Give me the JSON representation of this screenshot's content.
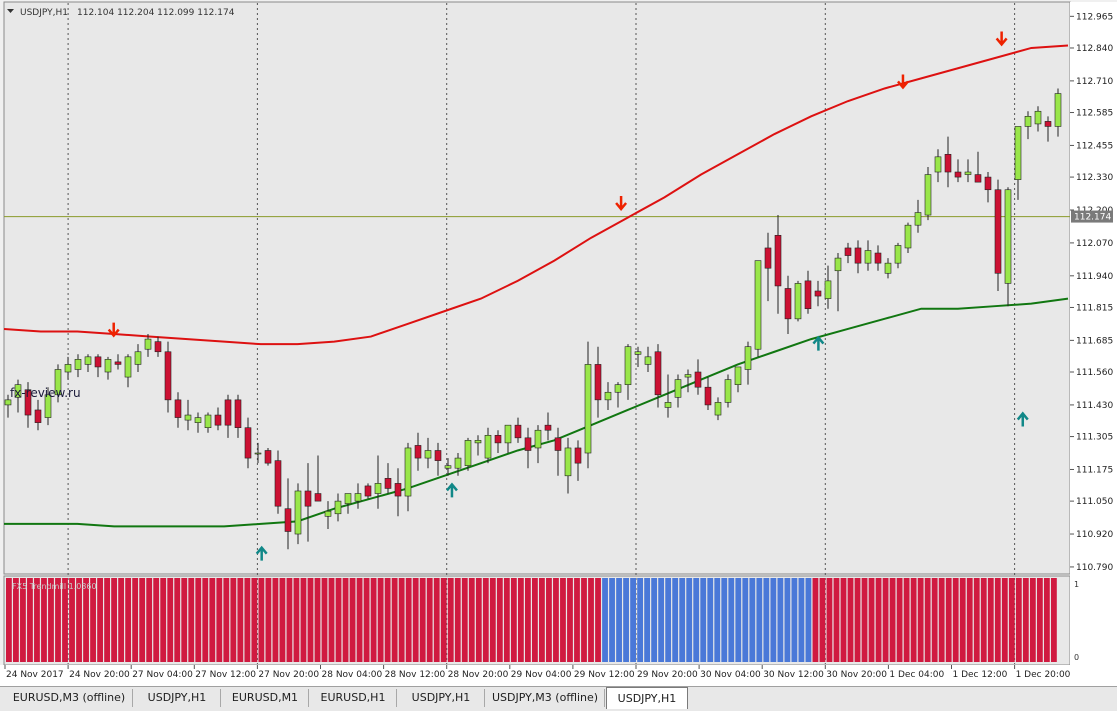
{
  "chart_header": {
    "symbol": "USDJPY,H1",
    "ohlc": "112.104 112.204 112.099 112.174"
  },
  "watermark": "fx-review.ru",
  "indicator_label": "FX5 Trendmill 1.0360",
  "current_price_label": "112.174",
  "colors": {
    "background": "#e8e8e8",
    "bull_candle": "#99e64a",
    "bear_candle": "#cc1133",
    "upper_band": "#dd1111",
    "lower_band": "#117711",
    "current_price_line": "#8a9a2a",
    "down_arrow": "#ee2200",
    "up_arrow": "#118888",
    "histogram_red": "#d01a40",
    "histogram_blue": "#4a78d8"
  },
  "chart_data": [
    {
      "type": "candlestick",
      "symbol": "USDJPY",
      "timeframe": "H1",
      "y_axis_ticks": [
        "112.965",
        "112.840",
        "112.710",
        "112.585",
        "112.455",
        "112.330",
        "112.200",
        "112.070",
        "111.940",
        "111.815",
        "111.685",
        "111.560",
        "111.430",
        "111.305",
        "111.175",
        "111.050",
        "110.920",
        "110.790"
      ],
      "ylim": [
        110.77,
        112.99
      ],
      "x_axis_ticks": [
        "24 Nov 2017",
        "24 Nov 20:00",
        "27 Nov 04:00",
        "27 Nov 12:00",
        "27 Nov 20:00",
        "28 Nov 04:00",
        "28 Nov 12:00",
        "28 Nov 20:00",
        "29 Nov 04:00",
        "29 Nov 12:00",
        "29 Nov 20:00",
        "30 Nov 04:00",
        "30 Nov 12:00",
        "30 Nov 20:00",
        "1 Dec 04:00",
        "1 Dec 12:00",
        "1 Dec 20:00"
      ],
      "current_price": 112.174,
      "candle_count": 106,
      "candles": [
        [
          111.43,
          111.47,
          111.38,
          111.45
        ],
        [
          111.46,
          111.53,
          111.4,
          111.51
        ],
        [
          111.49,
          111.52,
          111.34,
          111.39
        ],
        [
          111.41,
          111.45,
          111.33,
          111.36
        ],
        [
          111.38,
          111.5,
          111.35,
          111.47
        ],
        [
          111.47,
          111.59,
          111.44,
          111.57
        ],
        [
          111.56,
          111.62,
          111.53,
          111.59
        ],
        [
          111.57,
          111.63,
          111.54,
          111.61
        ],
        [
          111.59,
          111.63,
          111.56,
          111.62
        ],
        [
          111.62,
          111.63,
          111.54,
          111.58
        ],
        [
          111.56,
          111.62,
          111.53,
          111.61
        ],
        [
          111.6,
          111.63,
          111.57,
          111.59
        ],
        [
          111.54,
          111.63,
          111.5,
          111.62
        ],
        [
          111.59,
          111.67,
          111.56,
          111.64
        ],
        [
          111.65,
          111.71,
          111.62,
          111.69
        ],
        [
          111.68,
          111.7,
          111.62,
          111.64
        ],
        [
          111.64,
          111.68,
          111.4,
          111.45
        ],
        [
          111.45,
          111.48,
          111.34,
          111.38
        ],
        [
          111.37,
          111.45,
          111.33,
          111.39
        ],
        [
          111.36,
          111.4,
          111.32,
          111.38
        ],
        [
          111.34,
          111.4,
          111.32,
          111.39
        ],
        [
          111.39,
          111.42,
          111.33,
          111.35
        ],
        [
          111.45,
          111.47,
          111.3,
          111.35
        ],
        [
          111.45,
          111.47,
          111.3,
          111.34
        ],
        [
          111.34,
          111.38,
          111.18,
          111.22
        ],
        [
          111.24,
          111.28,
          111.2,
          111.24
        ],
        [
          111.25,
          111.26,
          111.19,
          111.2
        ],
        [
          111.21,
          111.25,
          111.0,
          111.03
        ],
        [
          111.02,
          111.14,
          110.86,
          110.93
        ],
        [
          110.92,
          111.12,
          110.88,
          111.09
        ],
        [
          111.09,
          111.2,
          110.89,
          111.03
        ],
        [
          111.08,
          111.23,
          111.05,
          111.05
        ],
        [
          110.99,
          111.05,
          110.94,
          111.01
        ],
        [
          111.0,
          111.08,
          110.97,
          111.05
        ],
        [
          111.04,
          111.08,
          111.0,
          111.08
        ],
        [
          111.05,
          111.12,
          111.02,
          111.08
        ],
        [
          111.11,
          111.12,
          111.06,
          111.07
        ],
        [
          111.08,
          111.23,
          111.02,
          111.12
        ],
        [
          111.14,
          111.2,
          111.08,
          111.1
        ],
        [
          111.12,
          111.18,
          110.99,
          111.07
        ],
        [
          111.07,
          111.28,
          111.01,
          111.26
        ],
        [
          111.27,
          111.32,
          111.17,
          111.22
        ],
        [
          111.22,
          111.3,
          111.18,
          111.25
        ],
        [
          111.25,
          111.28,
          111.15,
          111.21
        ],
        [
          111.18,
          111.22,
          111.15,
          111.19
        ],
        [
          111.18,
          111.24,
          111.15,
          111.22
        ],
        [
          111.19,
          111.3,
          111.17,
          111.29
        ],
        [
          111.28,
          111.31,
          111.23,
          111.29
        ],
        [
          111.22,
          111.34,
          111.2,
          111.31
        ],
        [
          111.31,
          111.33,
          111.24,
          111.28
        ],
        [
          111.28,
          111.35,
          111.24,
          111.35
        ],
        [
          111.35,
          111.38,
          111.28,
          111.3
        ],
        [
          111.3,
          111.34,
          111.18,
          111.25
        ],
        [
          111.26,
          111.35,
          111.2,
          111.33
        ],
        [
          111.35,
          111.4,
          111.29,
          111.33
        ],
        [
          111.3,
          111.34,
          111.15,
          111.25
        ],
        [
          111.15,
          111.3,
          111.08,
          111.26
        ],
        [
          111.26,
          111.29,
          111.13,
          111.2
        ],
        [
          111.24,
          111.68,
          111.18,
          111.59
        ],
        [
          111.59,
          111.66,
          111.38,
          111.45
        ],
        [
          111.45,
          111.52,
          111.41,
          111.48
        ],
        [
          111.48,
          111.52,
          111.42,
          111.51
        ],
        [
          111.51,
          111.67,
          111.45,
          111.66
        ],
        [
          111.63,
          111.66,
          111.58,
          111.64
        ],
        [
          111.59,
          111.66,
          111.56,
          111.62
        ],
        [
          111.64,
          111.67,
          111.42,
          111.47
        ],
        [
          111.42,
          111.55,
          111.38,
          111.44
        ],
        [
          111.46,
          111.55,
          111.42,
          111.53
        ],
        [
          111.54,
          111.57,
          111.48,
          111.55
        ],
        [
          111.56,
          111.61,
          111.47,
          111.5
        ],
        [
          111.5,
          111.54,
          111.41,
          111.43
        ],
        [
          111.39,
          111.46,
          111.37,
          111.44
        ],
        [
          111.44,
          111.55,
          111.42,
          111.53
        ],
        [
          111.51,
          111.58,
          111.48,
          111.58
        ],
        [
          111.57,
          111.68,
          111.51,
          111.66
        ],
        [
          111.65,
          112.0,
          111.62,
          112.0
        ],
        [
          112.05,
          112.11,
          111.84,
          111.97
        ],
        [
          112.1,
          112.18,
          111.79,
          111.9
        ],
        [
          111.89,
          111.94,
          111.71,
          111.77
        ],
        [
          111.77,
          111.92,
          111.76,
          111.91
        ],
        [
          111.92,
          111.96,
          111.79,
          111.81
        ],
        [
          111.88,
          111.92,
          111.82,
          111.86
        ],
        [
          111.85,
          111.98,
          111.81,
          111.92
        ],
        [
          111.96,
          112.03,
          111.8,
          112.01
        ],
        [
          112.05,
          112.07,
          111.99,
          112.02
        ],
        [
          112.05,
          112.08,
          111.95,
          111.99
        ],
        [
          111.99,
          112.08,
          111.96,
          112.04
        ],
        [
          112.03,
          112.06,
          111.96,
          111.99
        ],
        [
          111.95,
          112.01,
          111.93,
          111.99
        ],
        [
          111.99,
          112.07,
          111.97,
          112.06
        ],
        [
          112.05,
          112.15,
          112.03,
          112.14
        ],
        [
          112.14,
          112.24,
          112.11,
          112.19
        ],
        [
          112.18,
          112.37,
          112.16,
          112.34
        ],
        [
          112.35,
          112.44,
          112.31,
          112.41
        ],
        [
          112.42,
          112.49,
          112.29,
          112.35
        ],
        [
          112.35,
          112.4,
          112.31,
          112.33
        ],
        [
          112.34,
          112.4,
          112.31,
          112.35
        ],
        [
          112.34,
          112.43,
          112.31,
          112.31
        ],
        [
          112.33,
          112.35,
          112.23,
          112.28
        ],
        [
          112.28,
          112.32,
          111.88,
          111.95
        ],
        [
          111.91,
          112.29,
          111.82,
          112.28
        ],
        [
          112.32,
          112.53,
          112.24,
          112.53
        ],
        [
          112.53,
          112.59,
          112.48,
          112.57
        ],
        [
          112.54,
          112.61,
          112.51,
          112.59
        ],
        [
          112.55,
          112.57,
          112.47,
          112.53
        ],
        [
          112.53,
          112.68,
          112.49,
          112.66
        ]
      ],
      "upper_band": [
        111.73,
        111.72,
        111.72,
        111.71,
        111.7,
        111.69,
        111.68,
        111.67,
        111.67,
        111.68,
        111.7,
        111.75,
        111.8,
        111.85,
        111.92,
        112.0,
        112.09,
        112.17,
        112.25,
        112.34,
        112.42,
        112.5,
        112.57,
        112.63,
        112.68,
        112.72,
        112.76,
        112.8,
        112.84,
        112.85
      ],
      "lower_band": [
        110.96,
        110.96,
        110.96,
        110.95,
        110.95,
        110.95,
        110.95,
        110.96,
        110.97,
        111.02,
        111.06,
        111.1,
        111.15,
        111.2,
        111.25,
        111.29,
        111.35,
        111.41,
        111.47,
        111.53,
        111.59,
        111.64,
        111.69,
        111.73,
        111.77,
        111.81,
        111.81,
        111.82,
        111.83,
        111.85
      ],
      "signal_arrows": [
        {
          "type": "down",
          "candle": 15,
          "price": 111.7
        },
        {
          "type": "down",
          "candle": 87,
          "price": 112.2
        },
        {
          "type": "down",
          "candle": 127,
          "price": 112.68
        },
        {
          "type": "down",
          "candle": 141,
          "price": 112.85
        },
        {
          "type": "up",
          "candle": 36,
          "price": 110.87
        },
        {
          "type": "up",
          "candle": 63,
          "price": 111.12
        },
        {
          "type": "up",
          "candle": 115,
          "price": 111.7
        },
        {
          "type": "up",
          "candle": 144,
          "price": 111.4
        }
      ]
    },
    {
      "type": "histogram",
      "name": "FX5 Trendmill 1.0360",
      "y_axis_ticks": [
        "1",
        "0"
      ],
      "bar_count": 150,
      "segments": [
        {
          "from": 0,
          "to": 84,
          "color": "red"
        },
        {
          "from": 85,
          "to": 114,
          "color": "blue"
        },
        {
          "from": 115,
          "to": 149,
          "color": "red"
        }
      ]
    }
  ],
  "tabs": [
    {
      "label": "EURUSD,M3 (offline)",
      "active": false
    },
    {
      "label": "USDJPY,H1",
      "active": false
    },
    {
      "label": "EURUSD,M1",
      "active": false
    },
    {
      "label": "EURUSD,H1",
      "active": false
    },
    {
      "label": "USDJPY,H1",
      "active": false
    },
    {
      "label": "USDJPY,M3 (offline)",
      "active": false
    },
    {
      "label": "USDJPY,H1",
      "active": true
    }
  ]
}
